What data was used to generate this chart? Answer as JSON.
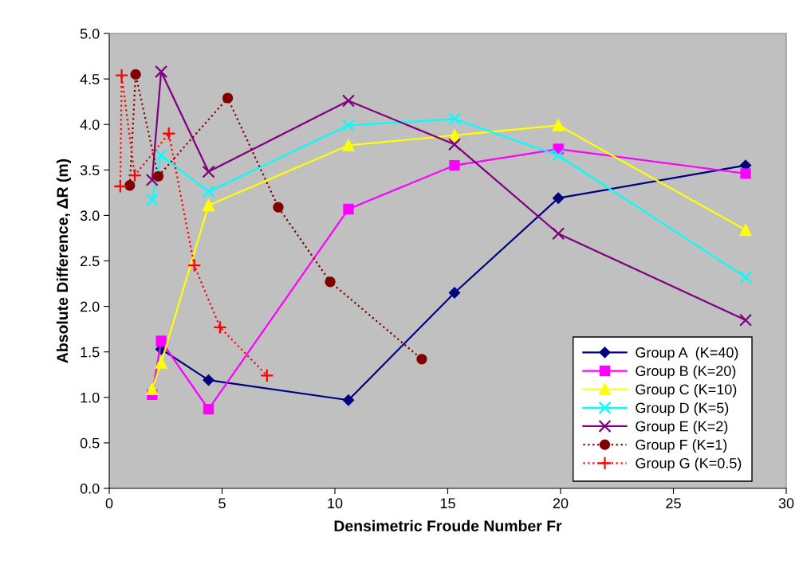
{
  "chart_data": {
    "type": "line",
    "xlabel": "Densimetric Froude Number Fr",
    "ylabel": "Absolute Difference, ΔR (m)",
    "xlim": [
      0,
      30
    ],
    "xticks": [
      0,
      5,
      10,
      15,
      20,
      25,
      30
    ],
    "ylim": [
      0,
      5
    ],
    "yticks": [
      {
        "value": 0,
        "label": "0.0"
      },
      {
        "value": 0.5,
        "label": "0.5"
      },
      {
        "value": 1,
        "label": "1.0"
      },
      {
        "value": 1.5,
        "label": "1.5"
      },
      {
        "value": 2,
        "label": "2.0"
      },
      {
        "value": 2.5,
        "label": "2.5"
      },
      {
        "value": 3,
        "label": "3.0"
      },
      {
        "value": 3.5,
        "label": "3.5"
      },
      {
        "value": 4,
        "label": "4.0"
      },
      {
        "value": 4.5,
        "label": "4.5"
      },
      {
        "value": 5,
        "label": "5.0"
      }
    ],
    "grid": false,
    "legend": "bottom right",
    "series": [
      {
        "name": "Group A  (K=40)",
        "color": "#000080",
        "marker": "diamond",
        "line_style": "solid",
        "x": [
          2.3,
          4.4,
          10.6,
          15.3,
          19.9,
          28.2
        ],
        "values": [
          1.53,
          1.19,
          0.97,
          2.15,
          3.19,
          3.55
        ]
      },
      {
        "name": "Group B (K=20)",
        "color": "#ff00ff",
        "marker": "square",
        "line_style": "solid",
        "x": [
          1.9,
          2.3,
          4.4,
          10.6,
          15.3,
          19.9,
          28.2
        ],
        "values": [
          1.03,
          1.62,
          0.87,
          3.07,
          3.55,
          3.73,
          3.46
        ]
      },
      {
        "name": "Group C (K=10)",
        "color": "#ffff00",
        "marker": "triangle",
        "line_style": "solid",
        "x": [
          1.9,
          2.3,
          4.4,
          10.6,
          15.3,
          19.9,
          28.2
        ],
        "values": [
          1.09,
          1.38,
          3.11,
          3.77,
          3.88,
          3.99,
          2.84
        ]
      },
      {
        "name": "Group D (K=5)",
        "color": "#00ffff",
        "marker": "cross",
        "line_style": "solid",
        "x": [
          1.9,
          2.3,
          4.4,
          10.6,
          15.3,
          19.9,
          28.2
        ],
        "values": [
          3.17,
          3.66,
          3.26,
          3.99,
          4.06,
          3.66,
          2.32
        ]
      },
      {
        "name": "Group E (K=2)",
        "color": "#800080",
        "marker": "cross",
        "line_style": "solid",
        "x": [
          1.9,
          2.3,
          4.4,
          10.6,
          15.3,
          19.9,
          28.2
        ],
        "values": [
          3.39,
          4.58,
          3.48,
          4.26,
          3.78,
          2.8,
          1.85
        ]
      },
      {
        "name": "Group F (K=1)",
        "color": "#800000",
        "marker": "circle",
        "line_style": "dotted",
        "x": [
          0.91,
          1.17,
          2.17,
          5.25,
          7.49,
          9.79,
          13.85
        ],
        "values": [
          3.33,
          4.55,
          3.43,
          4.29,
          3.09,
          2.27,
          1.42
        ]
      },
      {
        "name": "Group G (K=0.5)",
        "color": "#ff0000",
        "marker": "plus",
        "line_style": "dotted",
        "x": [
          0.49,
          0.55,
          1.13,
          2.64,
          3.77,
          4.91,
          6.99
        ],
        "values": [
          3.32,
          4.54,
          3.44,
          3.9,
          2.45,
          1.77,
          1.24
        ]
      }
    ]
  }
}
